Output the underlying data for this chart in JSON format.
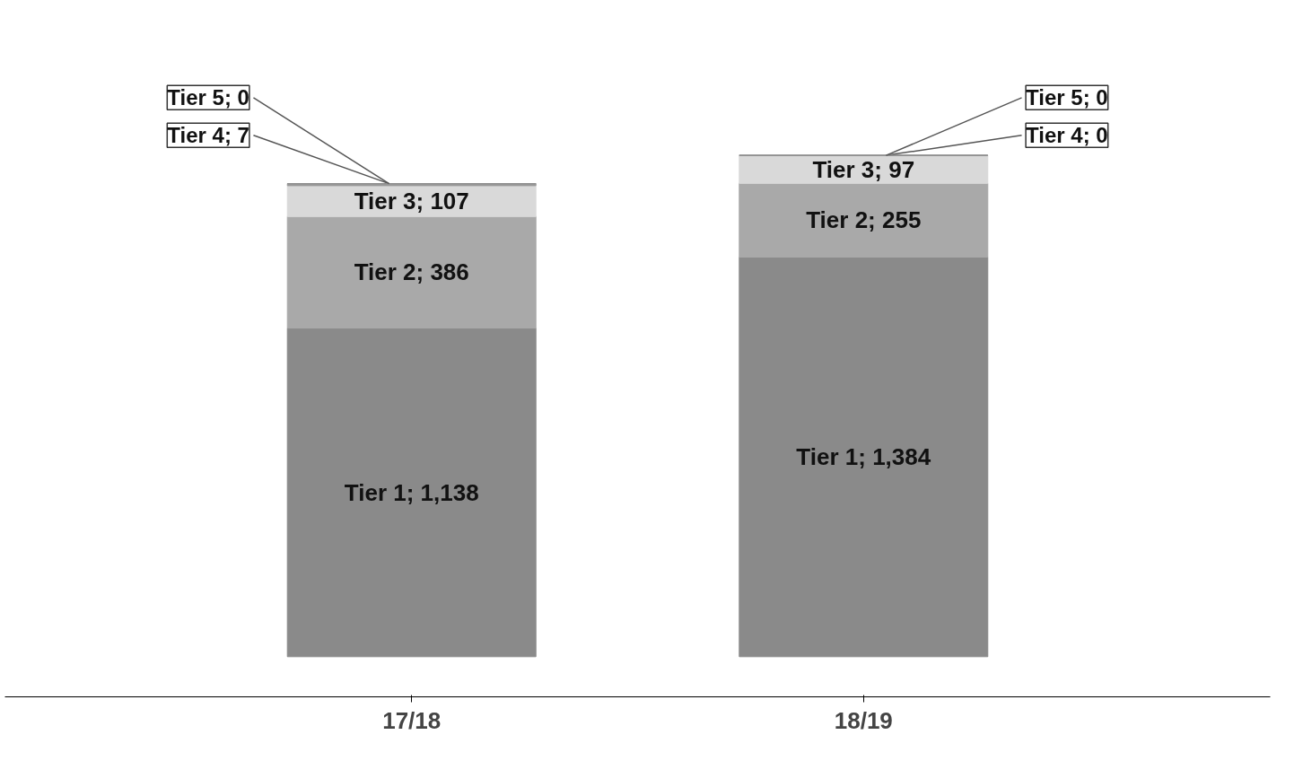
{
  "chart_data": {
    "type": "bar",
    "stacked": true,
    "categories": [
      "17/18",
      "18/19"
    ],
    "series": [
      {
        "color": "#8a8a8a",
        "values": [
          1138,
          1384
        ],
        "value_labels": [
          "Tier 1; 1,138",
          "Tier 1; 1,384"
        ]
      },
      {
        "color": "#a9a9a9",
        "values": [
          386,
          255
        ],
        "value_labels": [
          "Tier 2; 386",
          "Tier 2; 255"
        ]
      },
      {
        "color": "#d9d9d9",
        "values": [
          107,
          97
        ],
        "value_labels": [
          "Tier 3; 107",
          "Tier 3; 97"
        ]
      },
      {
        "color": "#9a9a9a",
        "values": [
          7,
          0
        ],
        "value_labels": [
          "Tier 4; 7",
          "Tier 4; 0"
        ]
      },
      {
        "color": "#8e8e8e",
        "values": [
          0,
          0
        ],
        "value_labels": [
          "Tier 5; 0",
          "Tier 5; 0"
        ]
      }
    ]
  }
}
